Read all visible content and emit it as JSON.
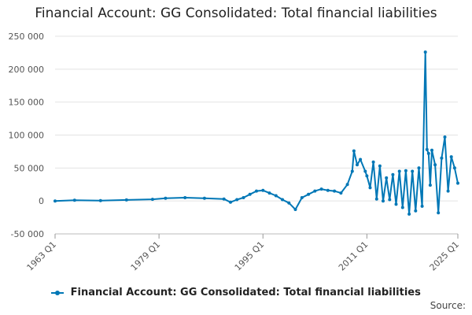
{
  "chart_data": {
    "type": "line",
    "title": "Financial Account: GG Consolidated: Total financial liabilities",
    "xlabel": "",
    "ylabel": "",
    "ylim": [
      -50000,
      250000
    ],
    "yticks": [
      250000,
      200000,
      150000,
      100000,
      50000,
      0,
      -50000
    ],
    "ytick_labels": [
      "250 000",
      "200 000",
      "150 000",
      "100 000",
      "50 000",
      "0",
      "-50 000"
    ],
    "xticks": [
      "1963 Q1",
      "1979 Q1",
      "1995 Q1",
      "2011 Q1",
      "2025 Q1"
    ],
    "grid": "horizontal",
    "legend_position": "bottom",
    "color": "#0077b6",
    "x_range": [
      "1963 Q1",
      "2025 Q1"
    ],
    "series": [
      {
        "name": "Financial Account: GG Consolidated: Total financial liabilities",
        "points": [
          [
            "1963 Q1",
            0
          ],
          [
            "1966 Q1",
            1000
          ],
          [
            "1970 Q1",
            500
          ],
          [
            "1974 Q1",
            1500
          ],
          [
            "1978 Q1",
            2500
          ],
          [
            "1980 Q1",
            4000
          ],
          [
            "1983 Q1",
            5000
          ],
          [
            "1986 Q1",
            4000
          ],
          [
            "1989 Q1",
            3000
          ],
          [
            "1990 Q1",
            -2000
          ],
          [
            "1991 Q1",
            2000
          ],
          [
            "1992 Q1",
            5000
          ],
          [
            "1993 Q1",
            10000
          ],
          [
            "1994 Q1",
            15000
          ],
          [
            "1995 Q1",
            16000
          ],
          [
            "1996 Q1",
            12000
          ],
          [
            "1997 Q1",
            8000
          ],
          [
            "1998 Q1",
            2000
          ],
          [
            "1999 Q1",
            -3000
          ],
          [
            "2000 Q1",
            -13000
          ],
          [
            "2001 Q1",
            5000
          ],
          [
            "2002 Q1",
            10000
          ],
          [
            "2003 Q1",
            15000
          ],
          [
            "2004 Q1",
            18000
          ],
          [
            "2005 Q1",
            16000
          ],
          [
            "2006 Q1",
            15000
          ],
          [
            "2007 Q1",
            12000
          ],
          [
            "2008 Q1",
            25000
          ],
          [
            "2008 Q4",
            45000
          ],
          [
            "2009 Q1",
            76000
          ],
          [
            "2009 Q3",
            55000
          ],
          [
            "2010 Q1",
            63000
          ],
          [
            "2010 Q4",
            45000
          ],
          [
            "2011 Q1",
            38000
          ],
          [
            "2011 Q3",
            20000
          ],
          [
            "2012 Q1",
            59000
          ],
          [
            "2012 Q3",
            3000
          ],
          [
            "2013 Q1",
            53000
          ],
          [
            "2013 Q3",
            0
          ],
          [
            "2014 Q1",
            35000
          ],
          [
            "2014 Q3",
            2000
          ],
          [
            "2015 Q1",
            40000
          ],
          [
            "2015 Q3",
            -5000
          ],
          [
            "2016 Q1",
            45000
          ],
          [
            "2016 Q3",
            -10000
          ],
          [
            "2017 Q1",
            46000
          ],
          [
            "2017 Q3",
            -20000
          ],
          [
            "2018 Q1",
            45000
          ],
          [
            "2018 Q3",
            -15000
          ],
          [
            "2019 Q1",
            50000
          ],
          [
            "2019 Q3",
            -8000
          ],
          [
            "2020 Q1",
            226000
          ],
          [
            "2020 Q2",
            78000
          ],
          [
            "2020 Q3",
            72000
          ],
          [
            "2020 Q4",
            24000
          ],
          [
            "2021 Q1",
            77000
          ],
          [
            "2021 Q3",
            55000
          ],
          [
            "2022 Q1",
            -18000
          ],
          [
            "2022 Q3",
            65000
          ],
          [
            "2023 Q1",
            97000
          ],
          [
            "2023 Q3",
            15000
          ],
          [
            "2024 Q1",
            67000
          ],
          [
            "2024 Q3",
            50000
          ],
          [
            "2025 Q1",
            27000
          ]
        ]
      }
    ]
  },
  "legend": {
    "label": "Financial Account: GG Consolidated: Total financial liabilities"
  },
  "footer": {
    "source_label": "Source:"
  }
}
